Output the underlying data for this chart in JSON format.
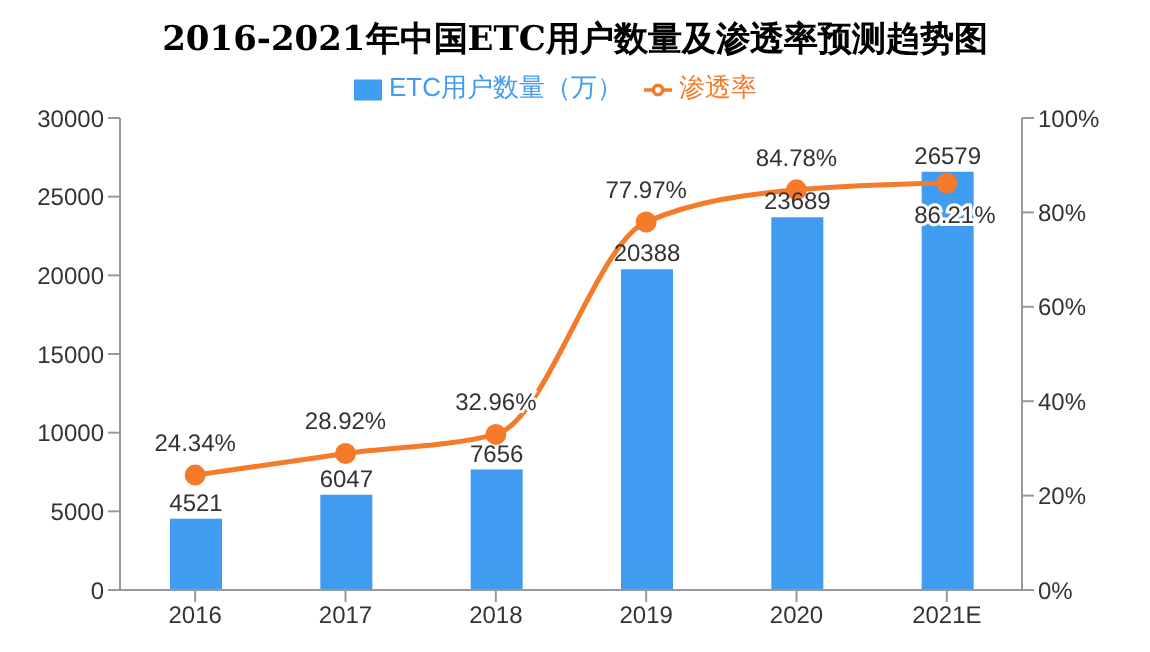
{
  "chart_data": {
    "type": "bar",
    "title": "2016-2021年中国ETC用户数量及渗透率预测趋势图",
    "categories": [
      "2016",
      "2017",
      "2018",
      "2019",
      "2020",
      "2021E"
    ],
    "series": [
      {
        "name": "ETC用户数量（万）",
        "color": "#3f9cf0",
        "values": [
          4521,
          6047,
          7656,
          20388,
          23689,
          26579
        ],
        "value_labels": [
          "4521",
          "6047",
          "7656",
          "20388",
          "23689",
          "26579"
        ]
      },
      {
        "name": "渗透率",
        "type": "line",
        "axis": "y2",
        "color": "#f47b2a",
        "marker": "circle",
        "values": [
          24.34,
          28.92,
          32.96,
          77.97,
          84.78,
          86.21
        ],
        "value_labels": [
          "24.34%",
          "28.92%",
          "32.96%",
          "77.97%",
          "84.78%",
          "86.21%"
        ]
      }
    ],
    "ylim": [
      0,
      30000
    ],
    "yticks": [
      0,
      5000,
      10000,
      15000,
      20000,
      25000,
      30000
    ],
    "y2lim": [
      0,
      100
    ],
    "y2ticks": [
      {
        "value": 0,
        "label": "0%"
      },
      {
        "value": 20,
        "label": "20%"
      },
      {
        "value": 40,
        "label": "40%"
      },
      {
        "value": 60,
        "label": "60%"
      },
      {
        "value": 80,
        "label": "80%"
      },
      {
        "value": 100,
        "label": "100%"
      }
    ],
    "legend": "top",
    "grid": false
  }
}
